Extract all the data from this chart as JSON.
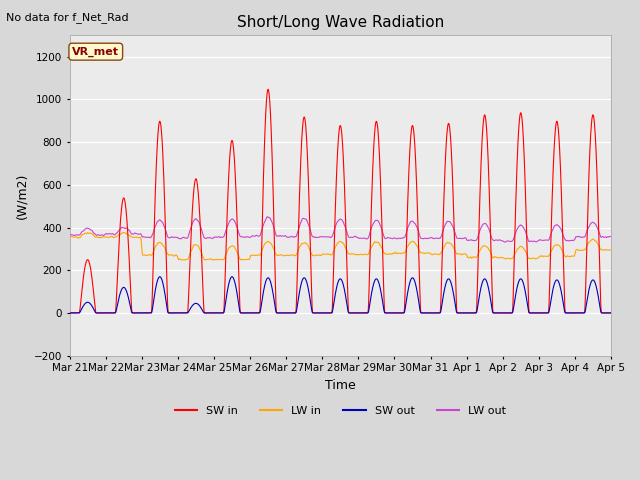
{
  "title": "Short/Long Wave Radiation",
  "xlabel": "Time",
  "ylabel": "(W/m2)",
  "ylim": [
    -200,
    1300
  ],
  "yticks": [
    -200,
    0,
    200,
    400,
    600,
    800,
    1000,
    1200
  ],
  "annotation_text": "No data for f_Net_Rad",
  "station_label": "VR_met",
  "x_tick_labels": [
    "Mar 21",
    "Mar 22",
    "Mar 23",
    "Mar 24",
    "Mar 25",
    "Mar 26",
    "Mar 27",
    "Mar 28",
    "Mar 29",
    "Mar 30",
    "Mar 31",
    "Apr 1",
    "Apr 2",
    "Apr 3",
    "Apr 4",
    "Apr 5"
  ],
  "colors": {
    "SW_in": "#FF0000",
    "LW_in": "#FFA500",
    "SW_out": "#0000BB",
    "LW_out": "#CC44CC"
  },
  "legend_entries": [
    "SW in",
    "LW in",
    "SW out",
    "LW out"
  ],
  "bg_color": "#D8D8D8",
  "plot_bg": "#EBEBEB",
  "num_days": 15,
  "points_per_day": 144,
  "sw_in_peaks": [
    250,
    540,
    900,
    630,
    810,
    1050,
    920,
    880,
    900,
    880,
    890,
    930,
    940,
    900,
    930
  ],
  "lw_in_night": [
    355,
    355,
    270,
    250,
    250,
    270,
    270,
    275,
    275,
    280,
    275,
    260,
    255,
    265,
    295
  ],
  "lw_in_day_bump": [
    20,
    20,
    60,
    70,
    65,
    65,
    60,
    60,
    60,
    55,
    55,
    55,
    55,
    55,
    50
  ],
  "lw_out_night": [
    365,
    370,
    355,
    350,
    355,
    360,
    355,
    355,
    350,
    350,
    350,
    340,
    335,
    340,
    355
  ],
  "lw_out_day_bump": [
    30,
    30,
    80,
    90,
    85,
    90,
    90,
    85,
    85,
    80,
    80,
    80,
    75,
    75,
    70
  ],
  "sw_out_peaks": [
    50,
    120,
    170,
    45,
    170,
    165,
    165,
    160,
    160,
    165,
    160,
    160,
    160,
    155,
    155
  ]
}
